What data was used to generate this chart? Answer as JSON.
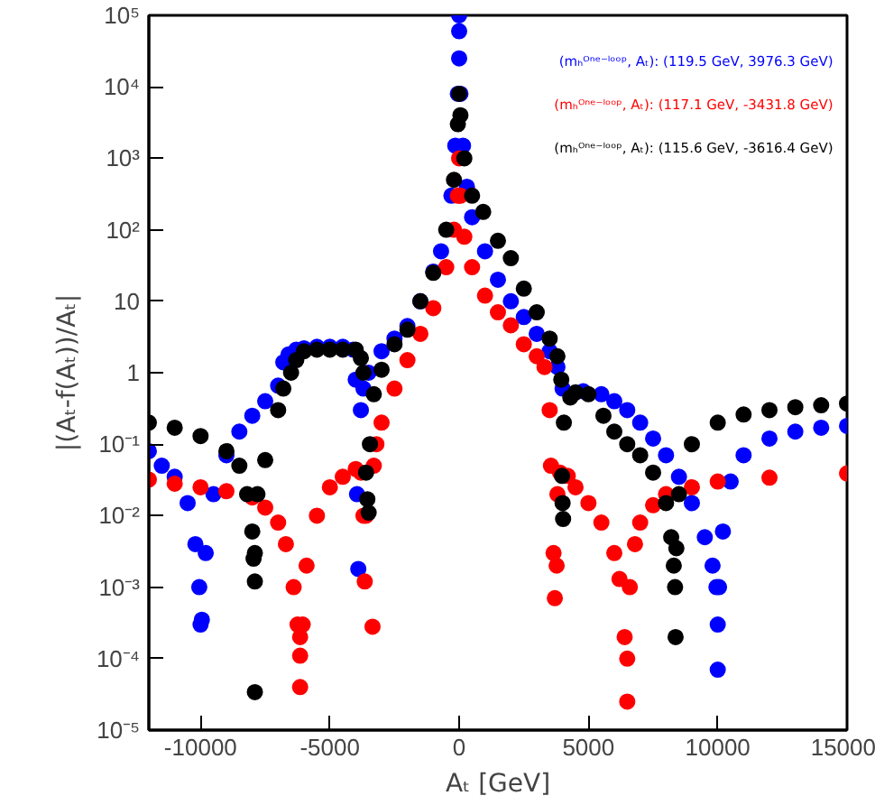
{
  "chart_data": {
    "type": "scatter",
    "xlabel": "Aₜ [GeV]",
    "ylabel": "|(Aₜ-f(Aₜ))/Aₜ|",
    "log": "y",
    "xlim": [
      -12000,
      15000
    ],
    "xticks": [
      -10000,
      -5000,
      0,
      5000,
      10000,
      15000
    ],
    "ylim": [
      1e-05,
      100000
    ],
    "yticks": [
      {
        "value": 1e-05,
        "label": "10⁻⁵"
      },
      {
        "value": 0.0001,
        "label": "10⁻⁴"
      },
      {
        "value": 0.001,
        "label": "10⁻³"
      },
      {
        "value": 0.01,
        "label": "10⁻²"
      },
      {
        "value": 0.1,
        "label": "10⁻¹"
      },
      1,
      10,
      {
        "value": 100,
        "label": "10²"
      },
      {
        "value": 1000,
        "label": "10³"
      },
      {
        "value": 10000,
        "label": "10⁴"
      },
      {
        "value": 100000,
        "label": "10⁵"
      }
    ],
    "grid": false,
    "marker": "circle",
    "series": [
      {
        "name": "(mₕᴼⁿᵉ⁻ˡᵒᵒᵖ, Aₜ): (119.5 GeV, 3976.3 GeV)",
        "color": "#0000ff",
        "x": [
          -12000,
          -11500,
          -11000,
          -10500,
          -10200,
          -10050,
          -10000,
          -9950,
          -9800,
          -9500,
          -9000,
          -8500,
          -8000,
          -7500,
          -7000,
          -6800,
          -6600,
          -6300,
          -6000,
          -5500,
          -5000,
          -4500,
          -4100,
          -4000,
          -3950,
          -3900,
          -3800,
          -3700,
          -3500,
          -3000,
          -2500,
          -2000,
          -1500,
          -1000,
          -700,
          -500,
          -300,
          -150,
          -50,
          0,
          0,
          0,
          50,
          150,
          300,
          500,
          1000,
          1500,
          2000,
          2500,
          3000,
          3500,
          3800,
          4000,
          4800,
          5500,
          6000,
          6500,
          7000,
          7500,
          8000,
          8500,
          9000,
          9500,
          9800,
          9950,
          10000,
          10000,
          10050,
          10200,
          10500,
          11000,
          12000,
          13000,
          14000,
          15000
        ],
        "values": [
          0.08,
          0.05,
          0.035,
          0.015,
          0.004,
          0.001,
          0.0003,
          0.00035,
          0.003,
          0.02,
          0.07,
          0.15,
          0.25,
          0.4,
          0.66,
          1.4,
          1.8,
          2.1,
          2.2,
          2.3,
          2.3,
          2.3,
          2.1,
          0.8,
          0.02,
          0.0018,
          0.3,
          0.6,
          1,
          2,
          3,
          4.5,
          10,
          26,
          50,
          null,
          300,
          1500,
          8000,
          100000,
          60000,
          25000,
          8000,
          1500,
          400,
          150,
          50,
          20,
          10,
          6,
          3.5,
          2,
          1.2,
          0.6,
          0.55,
          0.5,
          0.4,
          0.3,
          0.2,
          0.12,
          0.07,
          0.035,
          0.015,
          0.005,
          0.002,
          0.001,
          7e-05,
          0.0003,
          0.001,
          0.006,
          0.03,
          0.07,
          0.12,
          0.15,
          0.17,
          0.18
        ]
      },
      {
        "name": "(mₕᴼⁿᵉ⁻ˡᵒᵒᵖ, Aₜ): (117.1 GeV, -3431.8 GeV)",
        "color": "#ff0000",
        "x": [
          -12000,
          -11000,
          -10000,
          -9000,
          -8000,
          -7500,
          -7000,
          -6700,
          -6400,
          -6250,
          -6150,
          -6150,
          -6150,
          -6050,
          -5900,
          -5500,
          -5000,
          -4500,
          -4000,
          -3800,
          -3700,
          -3650,
          -3600,
          -3350,
          -3300,
          -3200,
          -3000,
          -2500,
          -2000,
          -1500,
          -1000,
          -500,
          -200,
          -50,
          0,
          50,
          200,
          500,
          1000,
          1500,
          2000,
          2500,
          3000,
          3300,
          3500,
          3550,
          3650,
          3700,
          3770,
          3800,
          3900,
          4200,
          4500,
          5000,
          5500,
          6000,
          6200,
          6400,
          6500,
          6500,
          6600,
          6800,
          7000,
          7500,
          8000,
          9000,
          10000,
          12000,
          15000
        ],
        "values": [
          0.032,
          0.028,
          0.025,
          0.022,
          0.018,
          0.013,
          0.008,
          0.004,
          0.001,
          0.0003,
          0.0002,
          0.00011,
          4e-05,
          0.0003,
          0.002,
          0.01,
          0.025,
          0.035,
          0.045,
          0.04,
          0.01,
          0.0012,
          0.01,
          0.00028,
          0.05,
          0.1,
          0.2,
          0.6,
          1.5,
          3.5,
          8,
          30,
          100,
          300,
          1000,
          300,
          80,
          30,
          12,
          7,
          4.6,
          2.5,
          1.7,
          1.2,
          0.3,
          0.05,
          0.003,
          0.0007,
          0.002,
          0.02,
          0.04,
          0.036,
          0.025,
          0.015,
          0.008,
          0.003,
          0.0013,
          0.0002,
          2.5e-05,
          0.0001,
          0.001,
          0.004,
          0.008,
          0.014,
          0.02,
          0.025,
          0.03,
          0.034,
          0.039
        ]
      },
      {
        "name": "(mₕᴼⁿᵉ⁻ˡᵒᵒᵖ, Aₜ): (115.6 GeV, -3616.4 GeV)",
        "color": "#000000",
        "x": [
          -12000,
          -11000,
          -10000,
          -9000,
          -8500,
          -8200,
          -8000,
          -7950,
          -7900,
          -7900,
          -7900,
          -7800,
          -7500,
          -7000,
          -6800,
          -6500,
          -6300,
          -6000,
          -5500,
          -5000,
          -4500,
          -4000,
          -3800,
          -3700,
          -3600,
          -3550,
          -3500,
          -3450,
          -3300,
          -3000,
          -2500,
          -2000,
          -1500,
          -1000,
          -500,
          -200,
          -50,
          0,
          50,
          200,
          500,
          930,
          1500,
          2000,
          2500,
          3000,
          3500,
          3800,
          3950,
          3980,
          4000,
          4020,
          4050,
          4300,
          4500,
          5000,
          5580,
          6000,
          6500,
          7000,
          7500,
          8000,
          8200,
          8300,
          8350,
          8370,
          8400,
          8500,
          9000,
          10000,
          11000,
          12000,
          13000,
          14000,
          15000
        ],
        "values": [
          0.2,
          0.17,
          0.13,
          0.08,
          0.05,
          0.02,
          0.006,
          0.0025,
          0.0012,
          3.4e-05,
          0.003,
          0.02,
          0.06,
          0.3,
          0.6,
          1,
          1.5,
          2,
          2.1,
          2.1,
          2.1,
          2.1,
          1.6,
          1,
          0.04,
          0.017,
          0.011,
          0.1,
          0.5,
          1.1,
          2.5,
          4,
          10,
          25,
          100,
          500,
          3000,
          8000,
          4000,
          1000,
          300,
          178,
          70,
          40,
          15,
          7,
          3,
          1.7,
          0.8,
          0.036,
          0.015,
          0.009,
          0.2,
          0.45,
          0.53,
          0.5,
          0.25,
          0.15,
          0.1,
          0.07,
          0.04,
          0.015,
          0.005,
          0.002,
          0.001,
          0.0002,
          0.0035,
          0.02,
          0.1,
          0.2,
          0.26,
          0.3,
          0.33,
          0.35,
          0.37
        ]
      }
    ]
  }
}
